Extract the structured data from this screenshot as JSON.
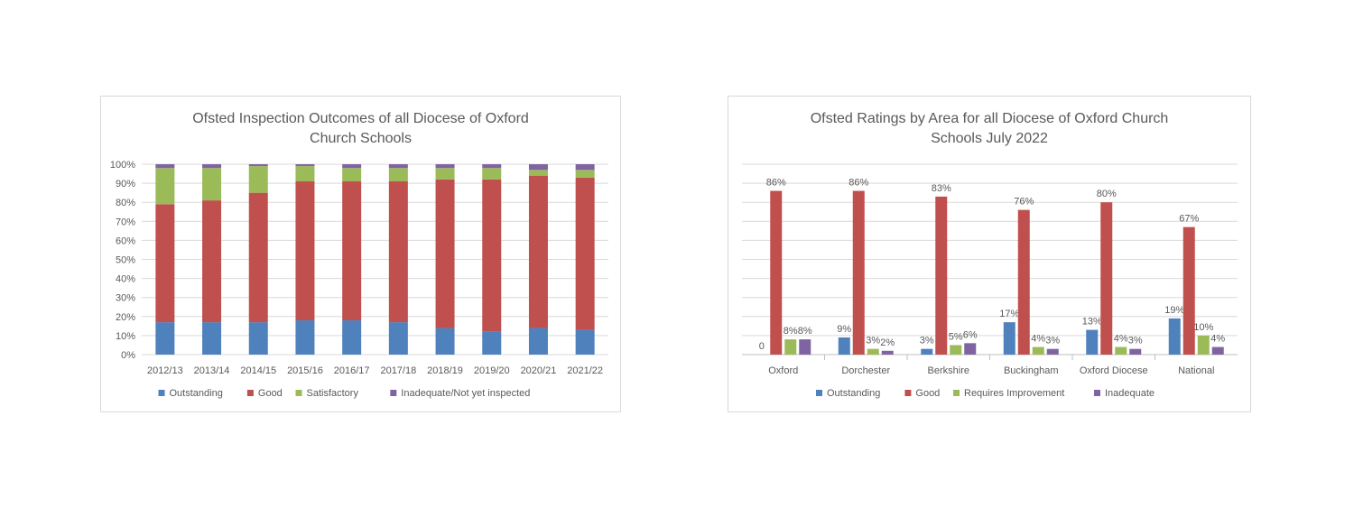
{
  "chart_data": [
    {
      "type": "bar",
      "stacked": true,
      "title_lines": [
        "Ofsted Inspection Outcomes of all Diocese of Oxford",
        "Church Schools"
      ],
      "categories": [
        "2012/13",
        "2013/14",
        "2014/15",
        "2015/16",
        "2016/17",
        "2017/18",
        "2018/19",
        "2019/20",
        "2020/21",
        "2021/22"
      ],
      "series": [
        {
          "name": "Outstanding",
          "color": "#4f81bd",
          "values": [
            17,
            17,
            17,
            18,
            18,
            17,
            14,
            12,
            14,
            13
          ]
        },
        {
          "name": "Good",
          "color": "#c0504d",
          "values": [
            62,
            64,
            68,
            73,
            73,
            74,
            78,
            80,
            80,
            80
          ]
        },
        {
          "name": "Satisfactory",
          "color": "#9bbb59",
          "values": [
            19,
            17,
            14,
            8,
            7,
            7,
            6,
            6,
            3,
            4
          ]
        },
        {
          "name": "Inadequate/Not yet inspected",
          "color": "#8064a2",
          "values": [
            2,
            2,
            1,
            1,
            2,
            2,
            2,
            2,
            3,
            3
          ]
        }
      ],
      "yticks": [
        "0%",
        "10%",
        "20%",
        "30%",
        "40%",
        "50%",
        "60%",
        "70%",
        "80%",
        "90%",
        "100%"
      ],
      "ylim": [
        0,
        100
      ],
      "grid": true,
      "legend_position": "bottom"
    },
    {
      "type": "bar",
      "title_lines": [
        "Ofsted Ratings by Area for all Diocese of Oxford Church",
        "Schools July 2022"
      ],
      "categories": [
        "Oxford",
        "Dorchester",
        "Berkshire",
        "Buckingham",
        "Oxford Diocese",
        "National"
      ],
      "series": [
        {
          "name": "Outstanding",
          "color": "#4f81bd",
          "values": [
            0,
            9,
            3,
            17,
            13,
            19
          ],
          "labels": [
            "0",
            "9%",
            "3%",
            "17%",
            "13%",
            "19%"
          ]
        },
        {
          "name": "Good",
          "color": "#c0504d",
          "values": [
            86,
            86,
            83,
            76,
            80,
            67
          ],
          "labels": [
            "86%",
            "86%",
            "83%",
            "76%",
            "80%",
            "67%"
          ]
        },
        {
          "name": "Requires Improvement",
          "color": "#9bbb59",
          "values": [
            8,
            3,
            5,
            4,
            4,
            10
          ],
          "labels": [
            "8%",
            "3%",
            "5%",
            "4%",
            "4%",
            "10%"
          ]
        },
        {
          "name": "Inadequate",
          "color": "#8064a2",
          "values": [
            8,
            2,
            6,
            3,
            3,
            4
          ],
          "labels": [
            "8%",
            "2%",
            "6%",
            "3%",
            "3%",
            "4%"
          ]
        }
      ],
      "ylim": [
        0,
        100
      ],
      "grid": true,
      "legend_position": "bottom"
    }
  ]
}
